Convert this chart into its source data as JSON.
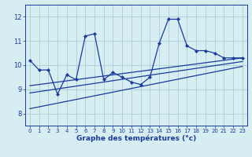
{
  "background_color": "#d6eef2",
  "grid_color": "#aacdd5",
  "line_color": "#1a3a9e",
  "title": "Graphe des températures (°c)",
  "x_ticks": [
    0,
    1,
    2,
    3,
    4,
    5,
    6,
    7,
    8,
    9,
    10,
    11,
    12,
    13,
    14,
    15,
    16,
    17,
    18,
    19,
    20,
    21,
    22,
    23
  ],
  "y_ticks": [
    8,
    9,
    10,
    11,
    12
  ],
  "ylim": [
    7.5,
    12.5
  ],
  "xlim": [
    -0.5,
    23.5
  ],
  "series1": {
    "x": [
      0,
      1,
      2,
      3,
      4,
      5,
      6,
      7,
      8,
      9,
      10,
      11,
      12,
      13,
      14,
      15,
      16,
      17,
      18,
      19,
      20,
      21,
      22,
      23
    ],
    "y": [
      10.2,
      9.8,
      9.8,
      8.8,
      9.6,
      9.4,
      11.2,
      11.3,
      9.4,
      9.7,
      9.5,
      9.3,
      9.2,
      9.5,
      10.9,
      11.9,
      11.9,
      10.8,
      10.6,
      10.6,
      10.5,
      10.3,
      10.3,
      10.3
    ]
  },
  "series2_linear1": {
    "x": [
      0,
      23
    ],
    "y": [
      9.15,
      10.3
    ]
  },
  "series2_linear2": {
    "x": [
      0,
      23
    ],
    "y": [
      8.85,
      10.15
    ]
  },
  "series2_linear3": {
    "x": [
      0,
      23
    ],
    "y": [
      8.2,
      9.95
    ]
  },
  "xtick_fontsize": 5.0,
  "ytick_fontsize": 6.0,
  "xlabel_fontsize": 6.5
}
